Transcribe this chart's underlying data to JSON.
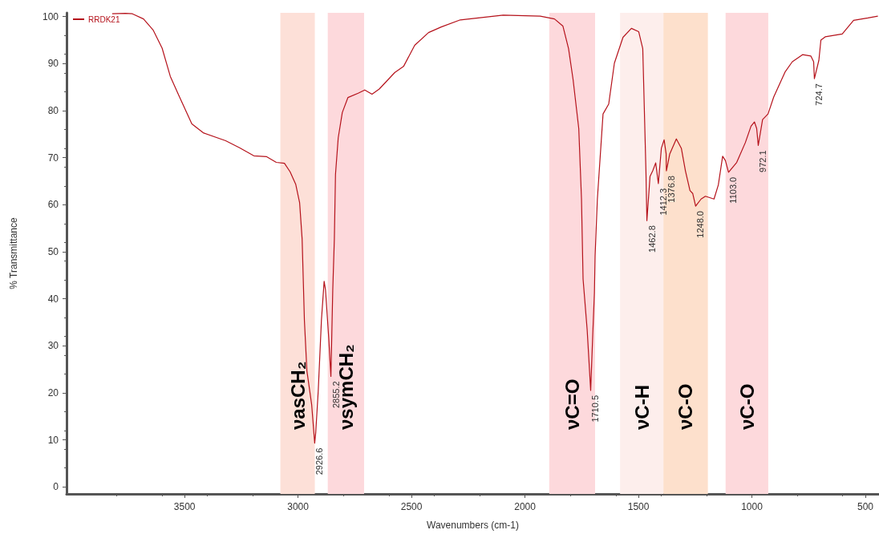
{
  "chart_data": {
    "type": "line",
    "xlabel": "Wavenumbers (cm-1)",
    "ylabel": "% Transmittance",
    "xlim": [
      4020,
      440
    ],
    "xticks": [
      3500,
      3000,
      2500,
      2000,
      1500,
      1000,
      500
    ],
    "ylim": [
      -1.5,
      100.8
    ],
    "yticks": [
      0,
      10,
      20,
      30,
      40,
      50,
      60,
      70,
      80,
      90,
      100
    ],
    "grid": false,
    "legend": "top left",
    "marker": "none",
    "line_style": "solid",
    "series": [
      {
        "name": "RRDK21",
        "color": "#b5121b",
        "x": [
          3819,
          3760,
          3730,
          3681,
          3638,
          3599,
          3563,
          3525,
          3468,
          3418,
          3319,
          3258,
          3195,
          3138,
          3096,
          3060,
          3035,
          3010,
          2993,
          2982,
          2972,
          2961,
          2940,
          2926.6,
          2922,
          2911,
          2897,
          2885,
          2879,
          2865,
          2855.2,
          2847,
          2840,
          2835,
          2823,
          2805,
          2780,
          2735,
          2706,
          2674,
          2642,
          2574,
          2535,
          2486,
          2425,
          2369,
          2285,
          2096,
          1933,
          1870,
          1833,
          1808,
          1788,
          1763,
          1751,
          1744,
          1726,
          1710.5,
          1701,
          1694,
          1691,
          1681,
          1656,
          1631,
          1606,
          1568,
          1531,
          1499,
          1481,
          1467,
          1462.8,
          1449,
          1437,
          1424,
          1412.3,
          1399,
          1387,
          1378,
          1376.8,
          1362,
          1333,
          1311,
          1293,
          1273,
          1261,
          1248.0,
          1224,
          1205,
          1167,
          1148,
          1129,
          1117,
          1103.0,
          1067,
          1029,
          1004,
          989,
          979,
          972.1,
          953,
          929,
          904,
          853,
          822,
          777,
          740,
          728,
          724.7,
          705,
          696,
          677,
          602,
          552,
          489,
          445
        ],
        "values": [
          100.6,
          100.7,
          100.6,
          99.5,
          97.1,
          93.3,
          87.3,
          83.2,
          77.2,
          75.3,
          73.6,
          72.1,
          70.4,
          70.2,
          69.0,
          68.8,
          67.0,
          64.3,
          60.4,
          52.7,
          35.4,
          24.7,
          17.5,
          9.3,
          11.6,
          20.4,
          35.4,
          43.7,
          41.9,
          31.8,
          23.5,
          41.9,
          52.7,
          66.4,
          74.2,
          79.6,
          82.8,
          83.7,
          84.4,
          83.5,
          84.6,
          88.1,
          89.4,
          93.9,
          96.6,
          97.8,
          99.3,
          100.3,
          100.1,
          99.5,
          98.0,
          93.2,
          86.6,
          76.2,
          61.2,
          44.2,
          33.4,
          20.5,
          32.8,
          41.3,
          49.1,
          61.2,
          79.3,
          81.4,
          90.1,
          95.6,
          97.5,
          96.8,
          93.2,
          67.2,
          56.6,
          66.0,
          67.2,
          68.9,
          64.5,
          72.0,
          73.8,
          70.8,
          67.2,
          70.8,
          74.0,
          72.0,
          67.2,
          63.0,
          62.4,
          59.7,
          61.2,
          61.8,
          61.2,
          64.2,
          70.3,
          69.4,
          66.9,
          69.0,
          73.2,
          76.7,
          77.6,
          76.2,
          72.6,
          78.1,
          79.3,
          82.9,
          88.3,
          90.4,
          91.9,
          91.6,
          90.4,
          86.8,
          90.7,
          95.0,
          95.7,
          96.3,
          99.2,
          99.7,
          100.1
        ]
      }
    ],
    "bands": [
      {
        "axis": "x",
        "from": 3078,
        "to": 2926,
        "label": "νasCH₂",
        "color": "#fde0d8"
      },
      {
        "axis": "x",
        "from": 2869,
        "to": 2709,
        "label": "νsymCH₂",
        "color": "#fdd9dc"
      },
      {
        "axis": "x",
        "from": 1893,
        "to": 1691,
        "label": "νC=O",
        "color": "#fdd9dc"
      },
      {
        "axis": "x",
        "from": 1581,
        "to": 1390,
        "label": "νC-H",
        "color": "#fdeeec"
      },
      {
        "axis": "x",
        "from": 1390,
        "to": 1194,
        "label": "νC-O",
        "color": "#fde0cc"
      },
      {
        "axis": "x",
        "from": 1116,
        "to": 928,
        "label": "νC-O",
        "color": "#fdd9dc"
      }
    ],
    "annotations": [
      {
        "text": "2926.6",
        "x": 2926.6,
        "y": 9.3
      },
      {
        "text": "2855.2",
        "x": 2855.2,
        "y": 23.5
      },
      {
        "text": "1710.5",
        "x": 1710.5,
        "y": 20.5
      },
      {
        "text": "1462.8",
        "x": 1462.8,
        "y": 56.6
      },
      {
        "text": "1412.3",
        "x": 1412.3,
        "y": 64.5
      },
      {
        "text": "1376.8",
        "x": 1376.8,
        "y": 67.2
      },
      {
        "text": "1248.0",
        "x": 1248.0,
        "y": 59.7
      },
      {
        "text": "1103.0",
        "x": 1103.0,
        "y": 66.9
      },
      {
        "text": "972.1",
        "x": 972.1,
        "y": 72.6
      },
      {
        "text": "724.7",
        "x": 724.7,
        "y": 86.8
      }
    ]
  }
}
